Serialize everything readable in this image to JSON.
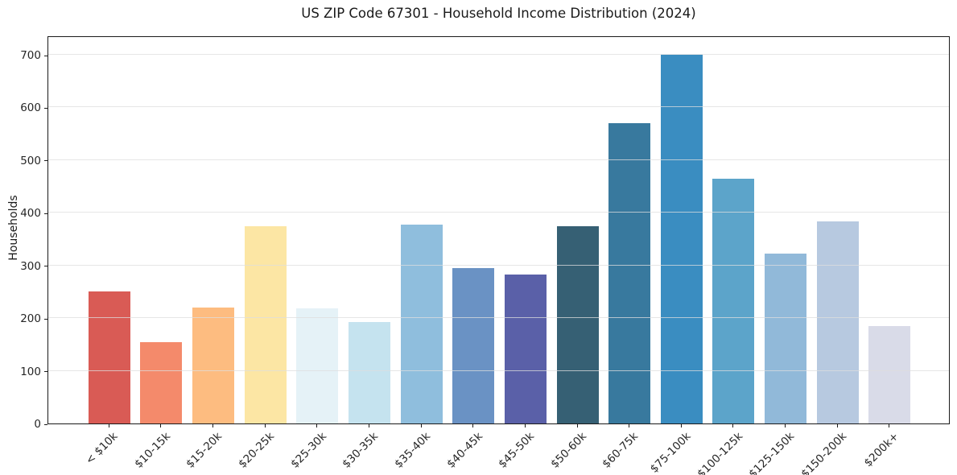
{
  "figure": {
    "title": "US ZIP Code 67301 - Household Income Distribution (2024)"
  },
  "chart_data": {
    "type": "bar",
    "title": "US ZIP Code 67301 - Household Income Distribution (2024)",
    "xlabel": "",
    "ylabel": "Households",
    "categories": [
      "< $10k",
      "$10-15k",
      "$15-20k",
      "$20-25k",
      "$25-30k",
      "$30-35k",
      "$35-40k",
      "$40-45k",
      "$45-50k",
      "$50-60k",
      "$60-75k",
      "$75-100k",
      "$100-125k",
      "$125-150k",
      "$150-200k",
      "$200k+"
    ],
    "values": [
      250,
      155,
      220,
      374,
      218,
      193,
      378,
      295,
      283,
      375,
      570,
      700,
      465,
      323,
      383,
      185
    ],
    "bar_colors": [
      "#d95b55",
      "#f48a6b",
      "#fdbc80",
      "#fce6a4",
      "#e5f2f7",
      "#c5e3ef",
      "#8fbedd",
      "#6a92c4",
      "#5a60a8",
      "#366074",
      "#38799e",
      "#3a8dc1",
      "#5ca4ca",
      "#91b9d9",
      "#b7c9e0",
      "#d9dbe8"
    ],
    "yticks": [
      0,
      100,
      200,
      300,
      400,
      500,
      600,
      700
    ],
    "ylim": [
      0,
      737
    ],
    "grid": "horizontal",
    "legend": "none"
  }
}
